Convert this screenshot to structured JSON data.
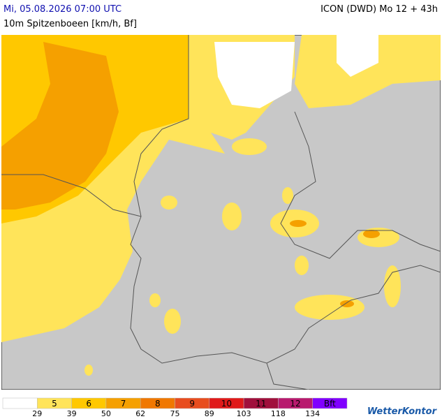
{
  "header": {
    "title": "Mi, 05.08.2026 07:00 UTC",
    "model": "ICON (DWD) Mo 12 + 43h",
    "subtitle": "10m Spitzenboeen [km/h, Bf]"
  },
  "legend": {
    "levels": [
      {
        "label": null,
        "color": "#ffffff"
      },
      {
        "label": "5",
        "color": "#ffe45a"
      },
      {
        "label": "6",
        "color": "#ffc800"
      },
      {
        "label": "7",
        "color": "#f5a000"
      },
      {
        "label": "8",
        "color": "#f07800"
      },
      {
        "label": "9",
        "color": "#e84d1e"
      },
      {
        "label": "10",
        "color": "#e01a1a"
      },
      {
        "label": "11",
        "color": "#a0103c"
      },
      {
        "label": "12",
        "color": "#b81a6e"
      },
      {
        "label": "Bft",
        "color": "#8000ff"
      }
    ],
    "thresholds": [
      29,
      39,
      50,
      62,
      75,
      89,
      103,
      118,
      134
    ]
  },
  "logo": "WetterKontor"
}
